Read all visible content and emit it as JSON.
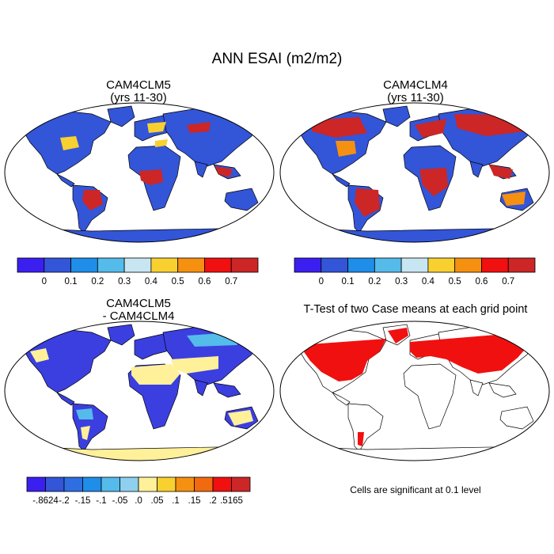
{
  "main_title": "ANN ESAI (m2/m2)",
  "panels": [
    {
      "title": "CAM4CLM5",
      "subtitle": "(yrs 11-30)"
    },
    {
      "title": "CAM4CLM4",
      "subtitle": "(yrs 11-30)"
    },
    {
      "title": "CAM4CLM5",
      "subtitle": "- CAM4CLM4"
    },
    {
      "title": "T-Test of two Case means at each grid point",
      "subtitle": ""
    }
  ],
  "note": "Cells are significant at 0.1 level",
  "colorbar_abs": {
    "colors": [
      "#3b1ff0",
      "#3355d8",
      "#1e8ee8",
      "#55bbea",
      "#c8e6f2",
      "#f8d030",
      "#f59010",
      "#f01010",
      "#cc2626"
    ],
    "labels": [
      "0",
      "0.1",
      "0.2",
      "0.3",
      "0.4",
      "0.5",
      "0.6",
      "0.7"
    ]
  },
  "colorbar_diff": {
    "colors": [
      "#3b1ff0",
      "#3355d8",
      "#2f6ee0",
      "#1e8ee8",
      "#55bbea",
      "#8ed0ee",
      "#fff09a",
      "#f8d030",
      "#f59010",
      "#f26a10",
      "#f01010",
      "#cc2626"
    ],
    "labels": [
      "-.8624",
      "-.2",
      "-.15",
      "-.1",
      "-.05",
      ".0",
      ".05",
      ".1",
      ".15",
      ".2",
      ".5165"
    ]
  },
  "land_colors": {
    "map1": {
      "base": "#3355d8",
      "hot": "#cc2626",
      "warm": "#f8d030"
    },
    "map2": {
      "base": "#3355d8",
      "hot": "#cc2626",
      "warm": "#f59010"
    },
    "map3": {
      "base": "#3b3fe0",
      "pale": "#fff09a",
      "mid": "#55bbea"
    },
    "map4": {
      "sig": "#f01010"
    }
  }
}
